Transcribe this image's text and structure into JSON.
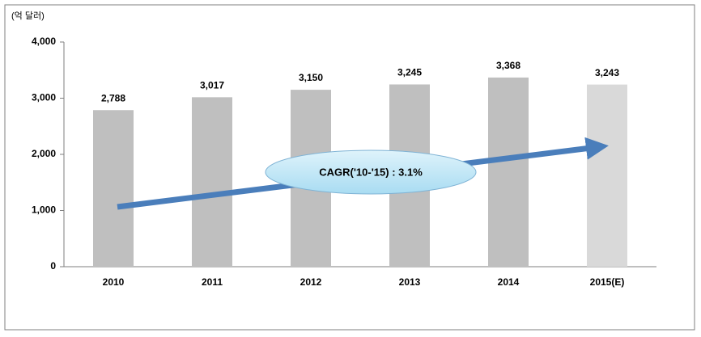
{
  "chart_data": {
    "type": "bar",
    "y_label": "(억 달러)",
    "annotation": "CAGR('10-'15) : 3.1%",
    "categories": [
      "2010",
      "2011",
      "2012",
      "2013",
      "2014",
      "2015(E)"
    ],
    "values": [
      2788,
      3017,
      3150,
      3245,
      3368,
      3243
    ],
    "value_labels": [
      "2,788",
      "3,017",
      "3,150",
      "3,245",
      "3,368",
      "3,243"
    ],
    "colors": [
      "#bfbfbf",
      "#bfbfbf",
      "#bfbfbf",
      "#bfbfbf",
      "#bfbfbf",
      "#d9d9d9"
    ],
    "ylim": [
      0,
      4000
    ],
    "yticks": [
      0,
      {
        "value": 1000,
        "label": "1,000"
      },
      {
        "value": 2000,
        "label": "2,000"
      },
      {
        "value": 3000,
        "label": "3,000"
      },
      {
        "value": 4000,
        "label": "4,000"
      }
    ],
    "grid": false
  }
}
